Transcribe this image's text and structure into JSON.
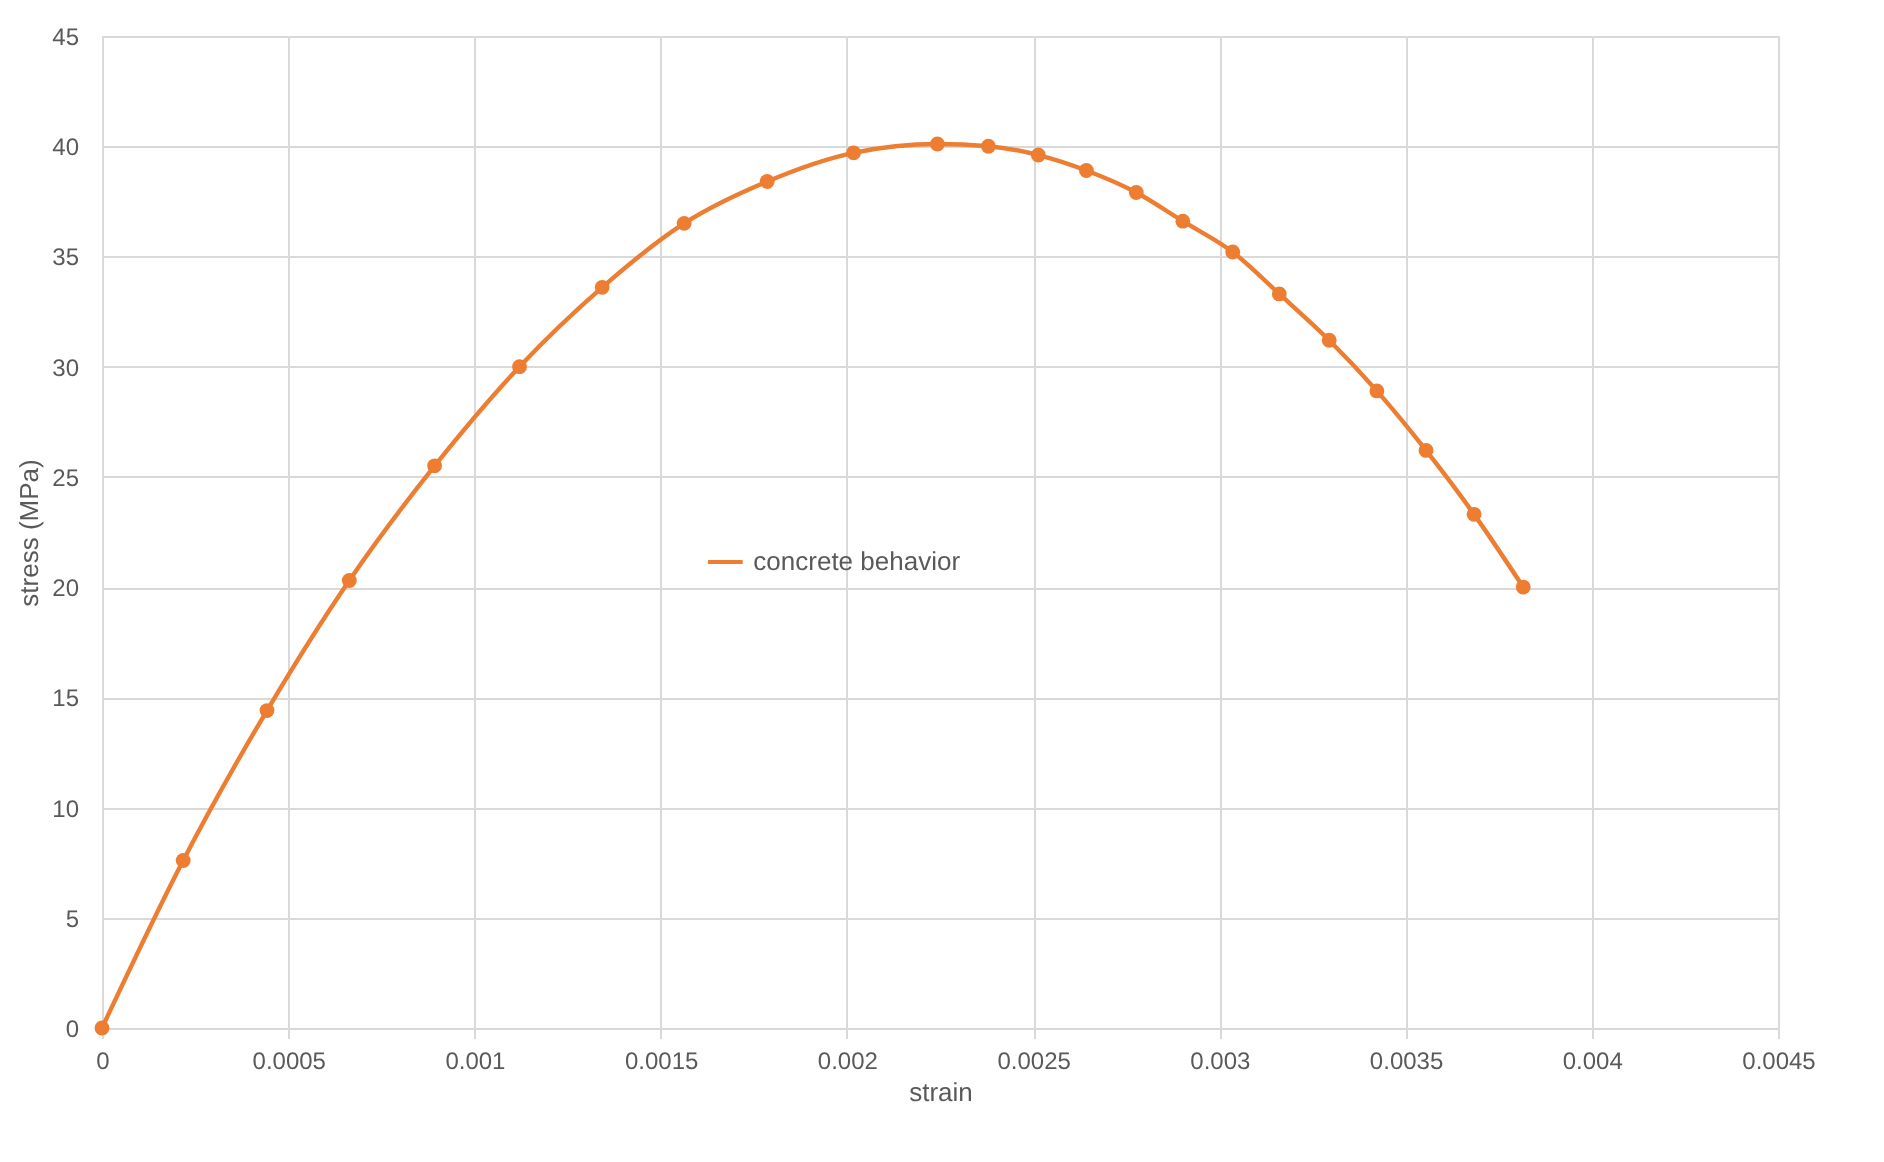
{
  "chart_data": {
    "type": "line",
    "xlabel": "strain",
    "ylabel": "stress (MPa)",
    "x": [
      0,
      0.000218,
      0.000443,
      0.000664,
      0.000893,
      0.001121,
      0.001343,
      0.001563,
      0.001786,
      0.002018,
      0.002243,
      0.00238,
      0.002514,
      0.002643,
      0.002777,
      0.002902,
      0.003036,
      0.003161,
      0.003295,
      0.003423,
      0.003555,
      0.003684,
      0.003816
    ],
    "series": [
      {
        "name": "concrete behavior",
        "color": "#ed7d31",
        "values": [
          0,
          7.6,
          14.4,
          20.3,
          25.5,
          30,
          33.6,
          36.5,
          38.4,
          39.7,
          40.1,
          40,
          39.6,
          38.9,
          37.9,
          36.6,
          35.2,
          33.3,
          31.2,
          28.9,
          26.2,
          23.3,
          20
        ]
      }
    ],
    "xlim": [
      0,
      0.0045
    ],
    "xticks": [
      0,
      0.0005,
      0.001,
      0.0015,
      0.002,
      0.0025,
      0.003,
      0.0035,
      0.004,
      0.0045
    ],
    "ylim": [
      0,
      45
    ],
    "yticks": [
      0,
      5,
      10,
      15,
      20,
      25,
      30,
      35,
      40,
      45
    ],
    "grid": true,
    "legend": "center",
    "marker": "circle",
    "line_style": "solid"
  }
}
